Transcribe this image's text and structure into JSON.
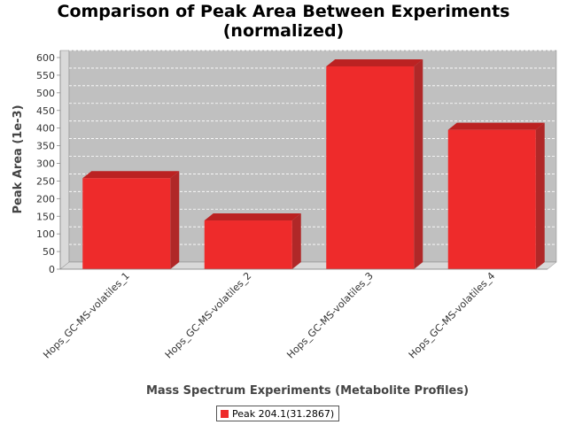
{
  "chart_data": {
    "type": "bar",
    "title": [
      "Comparison of Peak Area Between Experiments",
      "(normalized)"
    ],
    "xlabel": "Mass Spectrum Experiments (Metabolite Profiles)",
    "ylabel": "Peak Area (1e-3)",
    "categories": [
      "Hops_GC-MS-volatiles_1",
      "Hops_GC-MS-volatiles_2",
      "Hops_GC-MS-volatiles_3",
      "Hops_GC-MS-volatiles_4"
    ],
    "series": [
      {
        "name": "Peak 204.1(31.2867)",
        "values": [
          258,
          138,
          575,
          395
        ],
        "color": "#ee2b2b"
      }
    ],
    "ylim": [
      0,
      600
    ],
    "yticks": [
      0,
      50,
      100,
      150,
      200,
      250,
      300,
      350,
      400,
      450,
      500,
      550,
      600
    ],
    "grid": true,
    "legend_position": "bottom"
  },
  "colors": {
    "plot_background": "#c0c0c0",
    "plot_side": "#d9d9d9",
    "bar_front": "#ee2b2b",
    "bar_top": "#bb2222",
    "bar_side": "#b02828"
  }
}
